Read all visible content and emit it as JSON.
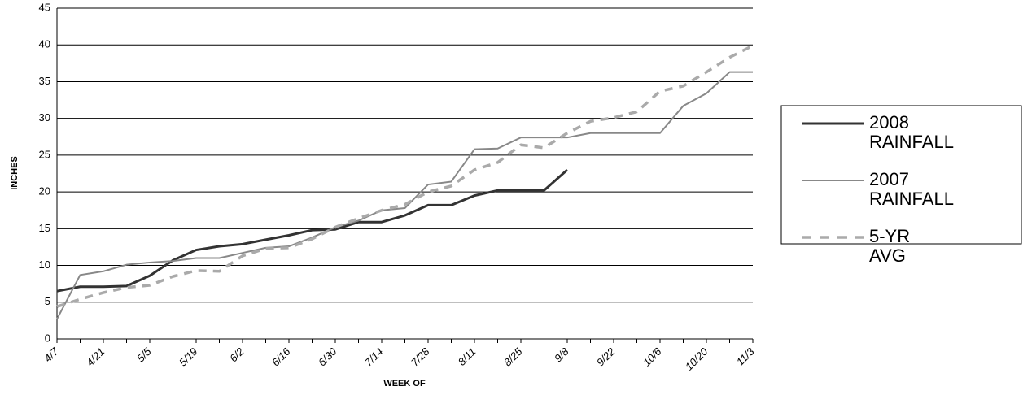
{
  "chart_data": {
    "type": "line",
    "x_label": "WEEK OF",
    "y_label": "INCHES",
    "categories": [
      "4/7",
      null,
      "4/21",
      null,
      "5/5",
      null,
      "5/19",
      null,
      "6/2",
      null,
      "6/16",
      null,
      "6/30",
      null,
      "7/14",
      null,
      "7/28",
      null,
      "8/11",
      null,
      "8/25",
      null,
      "9/8",
      null,
      "9/22",
      null,
      "10/6",
      null,
      "10/20",
      null,
      "11/3"
    ],
    "ylim": [
      0,
      45
    ],
    "yticks": [
      0,
      5,
      10,
      15,
      20,
      25,
      30,
      35,
      40,
      45
    ],
    "grid": true,
    "legend": "right",
    "series": [
      {
        "name": "2008 RAINFALL",
        "color": "#333333",
        "dash": false,
        "width": 3,
        "values": [
          6.5,
          7.1,
          7.1,
          7.2,
          8.6,
          10.7,
          12.1,
          12.6,
          12.9,
          13.5,
          14.1,
          14.8,
          14.9,
          15.9,
          15.9,
          16.8,
          18.2,
          18.2,
          19.5,
          20.2,
          20.2,
          20.2,
          23.0,
          null,
          null,
          null,
          null,
          null,
          null,
          null,
          null
        ]
      },
      {
        "name": "2007 RAINFALL",
        "color": "#888888",
        "dash": false,
        "width": 2,
        "values": [
          2.7,
          8.7,
          9.2,
          10.1,
          10.4,
          10.6,
          11.0,
          11.0,
          11.7,
          12.4,
          12.6,
          13.8,
          15.2,
          16.1,
          17.5,
          17.8,
          21.0,
          21.4,
          25.8,
          25.9,
          27.4,
          27.4,
          27.4,
          28.0,
          28.0,
          28.0,
          28.0,
          31.7,
          33.4,
          36.3,
          36.3
        ]
      },
      {
        "name": "5-YR AVG",
        "color": "#aaaaaa",
        "dash": true,
        "width": 3.5,
        "values": [
          4.4,
          5.4,
          6.3,
          7.0,
          7.3,
          8.5,
          9.3,
          9.2,
          11.3,
          12.3,
          12.4,
          13.6,
          15.2,
          16.4,
          17.5,
          18.3,
          20.0,
          20.8,
          23.0,
          24.0,
          26.4,
          26.0,
          28.0,
          29.6,
          30.1,
          30.9,
          33.7,
          34.4,
          36.3,
          38.3,
          39.9
        ]
      }
    ]
  }
}
